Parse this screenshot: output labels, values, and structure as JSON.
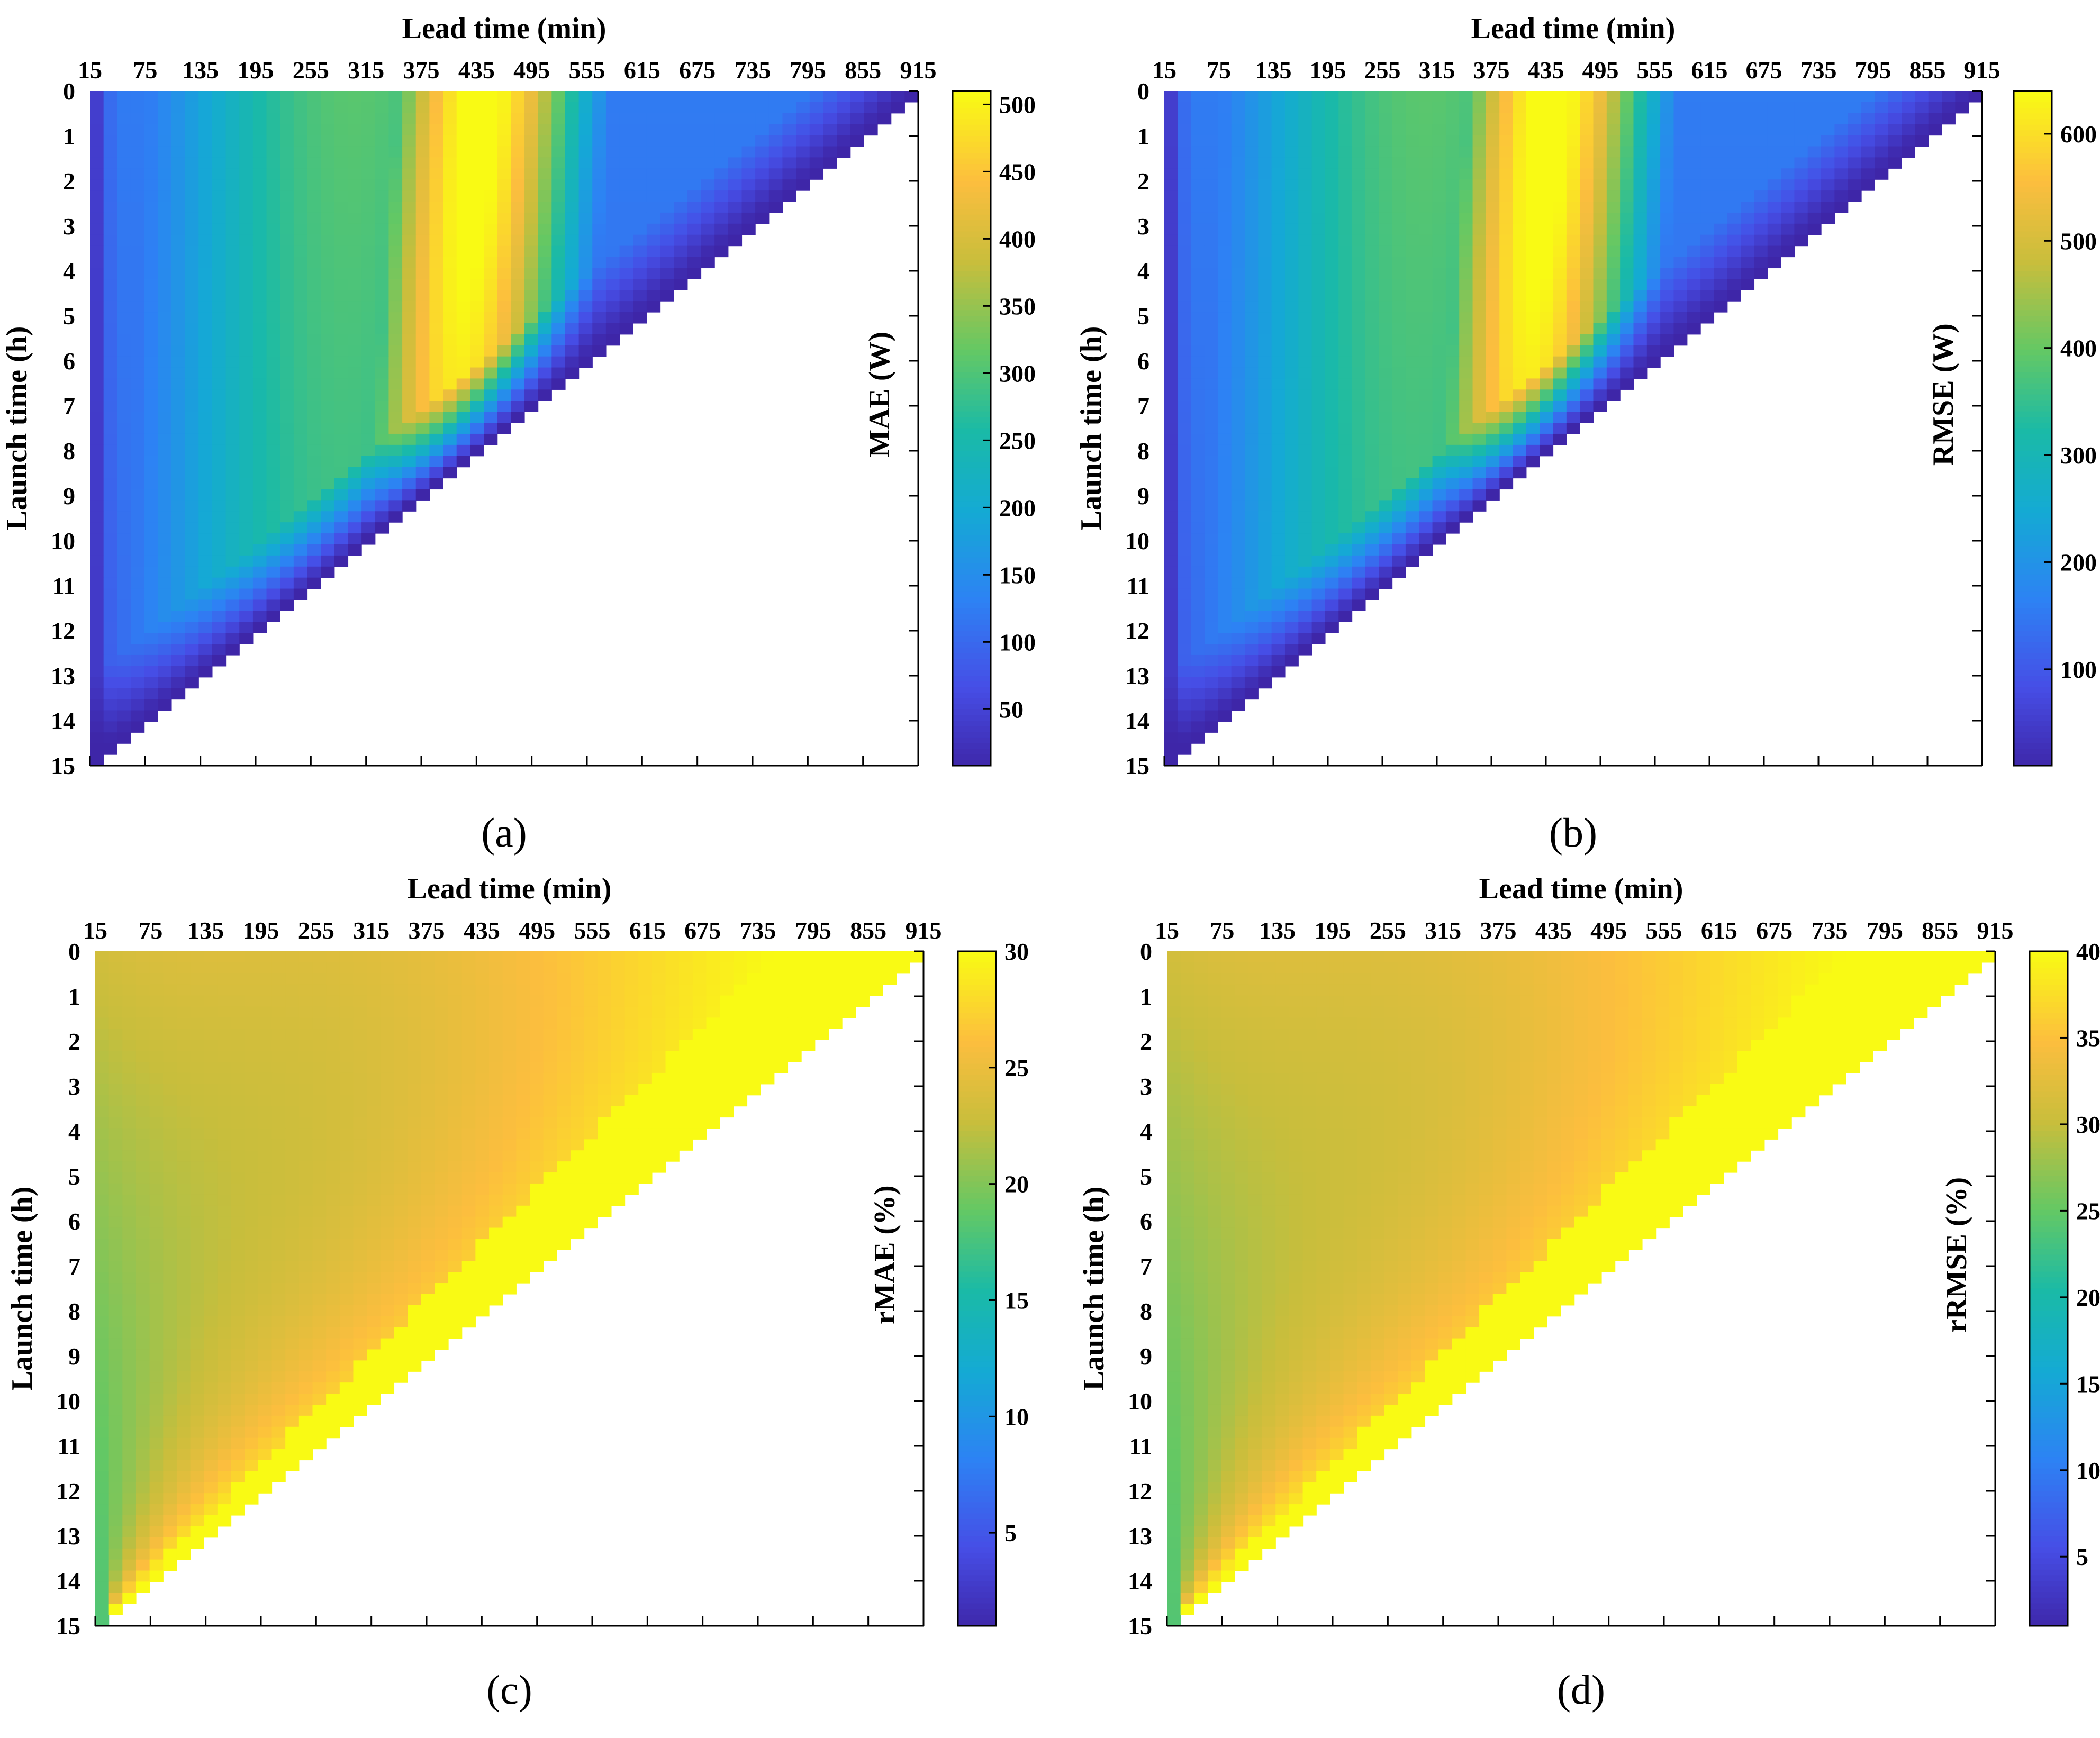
{
  "figure": {
    "panels": [
      "(a)",
      "(b)",
      "(c)",
      "(d)"
    ]
  },
  "chart_data": [
    {
      "type": "heatmap",
      "panel": "(a)",
      "xlabel": "Lead time (min)",
      "ylabel": "Launch time (h)",
      "x_tick_labels": [
        "15",
        "75",
        "135",
        "195",
        "255",
        "315",
        "375",
        "435",
        "495",
        "555",
        "615",
        "675",
        "735",
        "795",
        "855",
        "915"
      ],
      "y_tick_labels": [
        "0",
        "1",
        "2",
        "3",
        "4",
        "5",
        "6",
        "7",
        "8",
        "9",
        "10",
        "11",
        "12",
        "13",
        "14",
        "15"
      ],
      "colorbar_label": "MAE (W)",
      "colorbar_ticks": [
        50,
        100,
        150,
        200,
        250,
        300,
        350,
        400,
        450,
        500
      ],
      "clim": [
        8,
        510
      ],
      "pattern": "abs",
      "peak": 500,
      "grid": false
    },
    {
      "type": "heatmap",
      "panel": "(b)",
      "xlabel": "Lead time (min)",
      "ylabel": "Launch time (h)",
      "x_tick_labels": [
        "15",
        "75",
        "135",
        "195",
        "255",
        "315",
        "375",
        "435",
        "495",
        "555",
        "615",
        "675",
        "735",
        "795",
        "855",
        "915"
      ],
      "y_tick_labels": [
        "0",
        "1",
        "2",
        "3",
        "4",
        "5",
        "6",
        "7",
        "8",
        "9",
        "10",
        "11",
        "12",
        "13",
        "14",
        "15"
      ],
      "colorbar_label": "RMSE (W)",
      "colorbar_ticks": [
        100,
        200,
        300,
        400,
        500,
        600
      ],
      "clim": [
        10,
        640
      ],
      "pattern": "abs",
      "peak": 630,
      "grid": false
    },
    {
      "type": "heatmap",
      "panel": "(c)",
      "xlabel": "Lead time (min)",
      "ylabel": "Launch time (h)",
      "x_tick_labels": [
        "15",
        "75",
        "135",
        "195",
        "255",
        "315",
        "375",
        "435",
        "495",
        "555",
        "615",
        "675",
        "735",
        "795",
        "855",
        "915"
      ],
      "y_tick_labels": [
        "0",
        "1",
        "2",
        "3",
        "4",
        "5",
        "6",
        "7",
        "8",
        "9",
        "10",
        "11",
        "12",
        "13",
        "14",
        "15"
      ],
      "colorbar_label": "rMAE (%)",
      "colorbar_ticks": [
        5,
        10,
        15,
        20,
        25,
        30
      ],
      "clim": [
        1,
        30
      ],
      "pattern": "rel",
      "grid": false
    },
    {
      "type": "heatmap",
      "panel": "(d)",
      "xlabel": "Lead time (min)",
      "ylabel": "Launch time (h)",
      "x_tick_labels": [
        "15",
        "75",
        "135",
        "195",
        "255",
        "315",
        "375",
        "435",
        "495",
        "555",
        "615",
        "675",
        "735",
        "795",
        "855",
        "915"
      ],
      "y_tick_labels": [
        "0",
        "1",
        "2",
        "3",
        "4",
        "5",
        "6",
        "7",
        "8",
        "9",
        "10",
        "11",
        "12",
        "13",
        "14",
        "15"
      ],
      "colorbar_label": "rRMSE (%)",
      "colorbar_ticks": [
        5,
        10,
        15,
        20,
        25,
        30,
        35,
        40
      ],
      "clim": [
        1,
        40
      ],
      "pattern": "rel",
      "grid": false
    }
  ]
}
